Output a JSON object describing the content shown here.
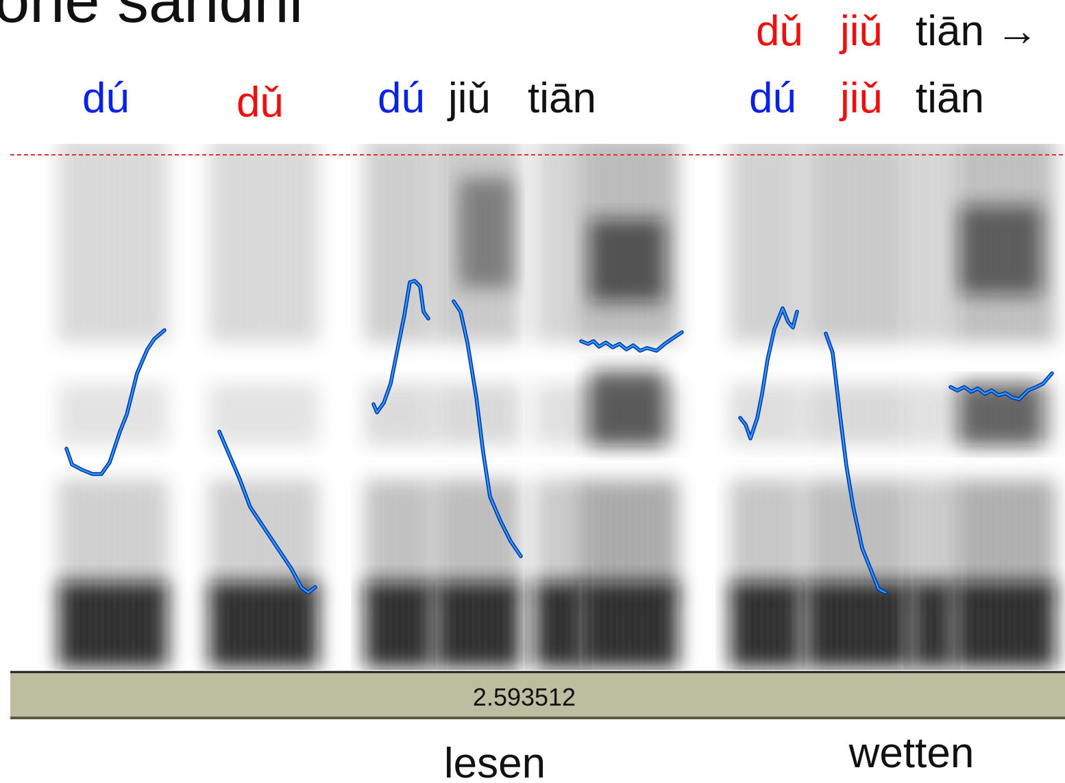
{
  "header": {
    "title": "one sandhi",
    "rule": [
      "dǔ",
      "jiǔ",
      "tiān →"
    ]
  },
  "labels": {
    "single_rising": "dú",
    "single_dipping": "dǔ",
    "phrase_1": [
      "dú",
      "jiǔ",
      "tiān"
    ],
    "phrase_2": [
      "dú",
      "jiǔ",
      "tiān"
    ]
  },
  "status_bar": {
    "time": "2.593512"
  },
  "captions": [
    "lesen",
    "wetten"
  ]
}
